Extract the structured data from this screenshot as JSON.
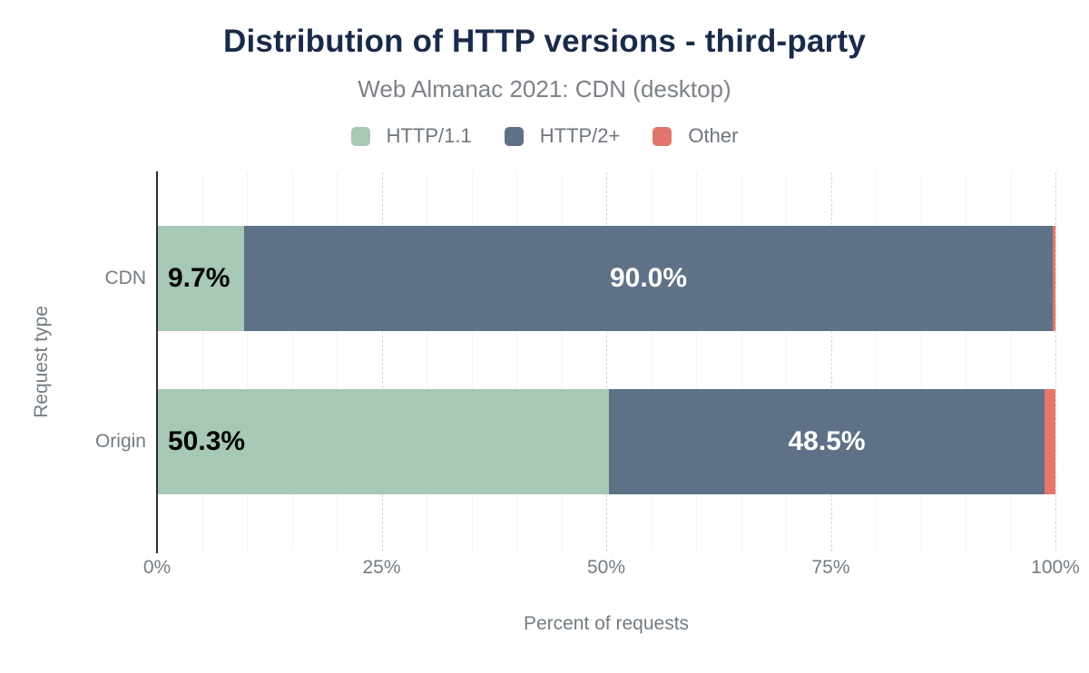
{
  "chart_data": {
    "type": "bar",
    "orientation": "horizontal",
    "stacked": true,
    "title": "Distribution of HTTP versions - third-party",
    "subtitle": "Web Almanac 2021: CDN (desktop)",
    "categories": [
      "CDN",
      "Origin"
    ],
    "series": [
      {
        "name": "HTTP/1.1",
        "color": "#a6c8b5",
        "values": [
          9.7,
          50.3
        ],
        "labels": [
          "9.7%",
          "50.3%"
        ],
        "label_style": "dark-left"
      },
      {
        "name": "HTTP/2+",
        "color": "#5f7187",
        "values": [
          90.0,
          48.5
        ],
        "labels": [
          "90.0%",
          "48.5%"
        ],
        "label_style": "light-center"
      },
      {
        "name": "Other",
        "color": "#e3766c",
        "values": [
          0.3,
          1.2
        ],
        "labels": [
          "",
          ""
        ],
        "label_style": "none"
      }
    ],
    "xlabel": "Percent of requests",
    "ylabel": "Request type",
    "xlim": [
      0,
      100
    ],
    "x_ticks": [
      {
        "label": "0%",
        "value": 0
      },
      {
        "label": "25%",
        "value": 25
      },
      {
        "label": "50%",
        "value": 50
      },
      {
        "label": "75%",
        "value": 75
      },
      {
        "label": "100%",
        "value": 100
      }
    ],
    "grid": {
      "minor_step": 5,
      "major_step": 25,
      "visible": true
    },
    "legend_position": "top"
  },
  "colors": {
    "background": "#ffffff",
    "title": "#1a2b49",
    "subtitle": "#7d8287",
    "axis_text": "#747c82",
    "legend_text": "#6f767c",
    "axis_line": "#2e2e2e",
    "grid_minor": "#f3f3f3",
    "grid_major": "#d8d8d8"
  }
}
